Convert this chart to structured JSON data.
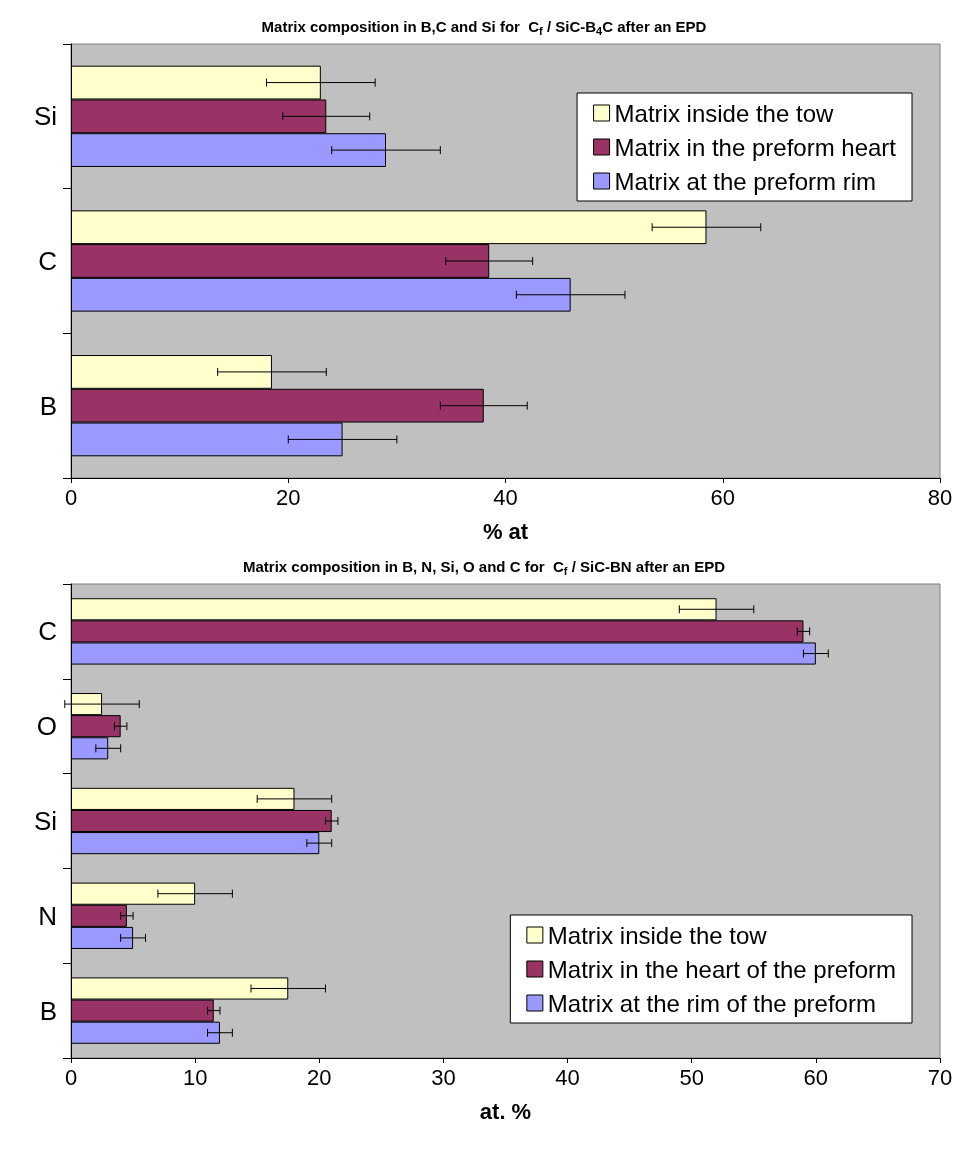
{
  "chart_data": [
    {
      "type": "bar",
      "orientation": "horizontal",
      "title": "Matrix composition in B,C and Si for  C$_{f}$ / SiC-B$_{4}$C after an EPD",
      "xlabel": "% at",
      "categories": [
        "Si",
        "C",
        "B"
      ],
      "series": [
        {
          "name": "Matrix inside the tow",
          "color": "#ffffcc",
          "values": [
            23,
            58.5,
            18.5
          ],
          "errors": [
            5,
            5,
            5
          ]
        },
        {
          "name": "Matrix in the preform heart",
          "color": "#993366",
          "values": [
            23.5,
            38.5,
            38
          ],
          "errors": [
            4,
            4,
            4
          ]
        },
        {
          "name": "Matrix at the preform rim",
          "color": "#9999ff",
          "values": [
            29,
            46,
            25
          ],
          "errors": [
            5,
            5,
            5
          ]
        }
      ],
      "xlim": [
        0,
        80
      ],
      "xticks": [
        0,
        20,
        40,
        60,
        80
      ],
      "grid": false,
      "legend": "top right"
    },
    {
      "type": "bar",
      "orientation": "horizontal",
      "title": "Matrix composition in B, N, Si, O and C for  C$_{f}$ / SiC-BN after an EPD",
      "xlabel": "at. %",
      "categories": [
        "C",
        "O",
        "Si",
        "N",
        "B"
      ],
      "series": [
        {
          "name": "Matrix inside the tow",
          "color": "#ffffcc",
          "values": [
            52,
            2.5,
            18,
            10,
            17.5
          ],
          "errors": [
            3,
            3,
            3,
            3,
            3
          ]
        },
        {
          "name": "Matrix in the heart of the preform",
          "color": "#993366",
          "values": [
            59,
            4,
            21,
            4.5,
            11.5
          ],
          "errors": [
            0.5,
            0.5,
            0.5,
            0.5,
            0.5
          ]
        },
        {
          "name": "Matrix at the rim of the preform",
          "color": "#9999ff",
          "values": [
            60,
            3,
            20,
            5,
            12
          ],
          "errors": [
            1,
            1,
            1,
            1,
            1
          ]
        }
      ],
      "xlim": [
        0,
        70
      ],
      "xticks": [
        0,
        10,
        20,
        30,
        40,
        50,
        60,
        70
      ],
      "grid": false,
      "legend": "bottom right"
    }
  ]
}
